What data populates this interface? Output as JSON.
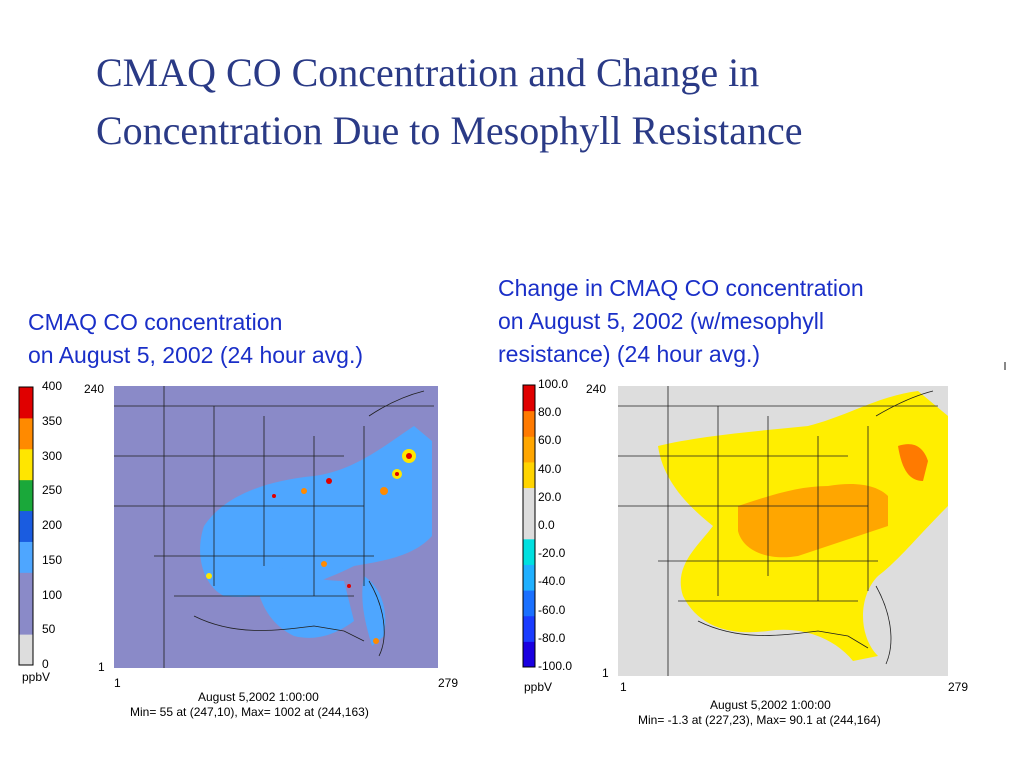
{
  "slide": {
    "title_line1": "CMAQ CO Concentration and Change in",
    "title_line2": "Concentration Due to Mesophyll Resistance"
  },
  "left_panel": {
    "caption_line1": "CMAQ CO concentration",
    "caption_line2": "on August 5, 2002 (24 hour avg.)",
    "colorbar_labels": [
      "400",
      "350",
      "300",
      "250",
      "200",
      "150",
      "100",
      "50",
      "0"
    ],
    "colorbar_colors": [
      "#e00000",
      "#ff8a00",
      "#ffe600",
      "#1aa83a",
      "#1a5ce0",
      "#4ea6ff",
      "#8a8ac8",
      "#8a8ac8",
      "#dddddd"
    ],
    "units": "ppbV",
    "y_top": "240",
    "y_bottom": "1",
    "x_left": "1",
    "x_right": "279",
    "timestamp": "August 5,2002 1:00:00",
    "minmax": "Min=   55 at (247,10), Max= 1002 at (244,163)",
    "map_background": "#8a8ac8",
    "map_plume": "#4ea6ff"
  },
  "right_panel": {
    "caption_line1": "Change  in CMAQ CO concentration",
    "caption_line2": "on August 5, 2002 (w/mesophyll",
    "caption_line3": "resistance) (24 hour avg.)",
    "colorbar_labels": [
      "100.0",
      "80.0",
      "60.0",
      "40.0",
      "20.0",
      "0.0",
      "-20.0",
      "-40.0",
      "-60.0",
      "-80.0",
      "-100.0"
    ],
    "colorbar_colors": [
      "#e00000",
      "#ff7a00",
      "#ffa600",
      "#ffd400",
      "#dddddd",
      "#dddddd",
      "#00e0e0",
      "#20b0ff",
      "#1a70ff",
      "#1a3cff",
      "#1a00e0"
    ],
    "units": "ppbV",
    "y_top": "240",
    "y_bottom": "1",
    "x_left": "1",
    "x_right": "279",
    "timestamp": "August 5,2002 1:00:00",
    "minmax": "Min= -1.3 at (227,23), Max= 90.1 at (244,164)",
    "map_background": "#dddddd",
    "map_yellow": "#ffee00",
    "map_orange": "#ffa600"
  }
}
